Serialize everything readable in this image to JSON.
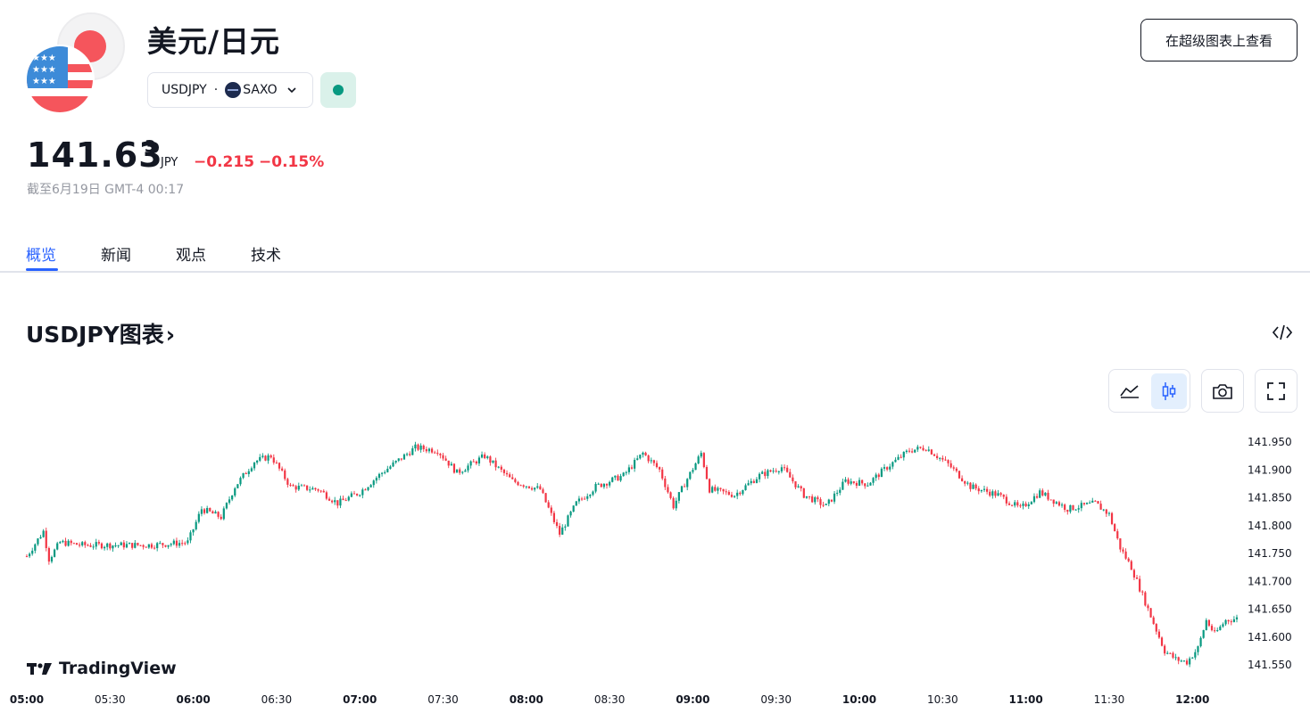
{
  "header": {
    "title": "美元/日元",
    "symbol": "USDJPY",
    "separator": "·",
    "exchange": "SAXO",
    "super_chart_label": "在超级图表上查看"
  },
  "quote": {
    "price_main": "141.63",
    "price_sup": "3",
    "currency": "JPY",
    "change": "−0.215",
    "change_pct": "−0.15%",
    "as_of": "截至6月19日 GMT-4 00:17",
    "market_status": "open",
    "colors": {
      "down": "#f23645",
      "up": "#089981",
      "accent": "#2962ff"
    }
  },
  "tabs": [
    {
      "label": "概览",
      "active": true
    },
    {
      "label": "新闻",
      "active": false
    },
    {
      "label": "观点",
      "active": false
    },
    {
      "label": "技术",
      "active": false
    }
  ],
  "chart_section": {
    "title": "USDJPY图表",
    "chevron": "›",
    "tools": [
      "area-chart-icon",
      "candles-icon",
      "camera-icon",
      "fullscreen-icon"
    ],
    "embed_icon": "code-icon",
    "brand": "TradingView"
  },
  "chart_data": {
    "type": "candlestick",
    "title": "",
    "interval": "1 minute",
    "x_ticks": [
      "05:00",
      "05:30",
      "06:00",
      "06:30",
      "07:00",
      "07:30",
      "08:00",
      "08:30",
      "09:00",
      "09:30",
      "10:00",
      "10:30",
      "11:00",
      "11:30",
      "12:00"
    ],
    "x_ticks_bold": [
      "05:00",
      "06:00",
      "07:00",
      "08:00",
      "09:00",
      "10:00",
      "11:00",
      "12:00"
    ],
    "y_ticks": [
      "141.950",
      "141.900",
      "141.850",
      "141.800",
      "141.750",
      "141.700",
      "141.650",
      "141.600",
      "141.550"
    ],
    "ylim": [
      141.51,
      141.975
    ],
    "x_range": [
      "05:00",
      "12:16"
    ],
    "close_path": [
      [
        "05:00",
        141.745
      ],
      [
        "05:06",
        141.79
      ],
      [
        "05:08",
        141.74
      ],
      [
        "05:12",
        141.77
      ],
      [
        "05:20",
        141.765
      ],
      [
        "05:45",
        141.765
      ],
      [
        "05:58",
        141.77
      ],
      [
        "06:03",
        141.83
      ],
      [
        "06:10",
        141.815
      ],
      [
        "06:15",
        141.87
      ],
      [
        "06:22",
        141.915
      ],
      [
        "06:28",
        141.925
      ],
      [
        "06:35",
        141.87
      ],
      [
        "06:45",
        141.865
      ],
      [
        "06:52",
        141.84
      ],
      [
        "07:00",
        141.86
      ],
      [
        "07:08",
        141.895
      ],
      [
        "07:20",
        141.94
      ],
      [
        "07:28",
        141.935
      ],
      [
        "07:35",
        141.895
      ],
      [
        "07:45",
        141.925
      ],
      [
        "07:55",
        141.88
      ],
      [
        "08:05",
        141.865
      ],
      [
        "08:12",
        141.785
      ],
      [
        "08:18",
        141.84
      ],
      [
        "08:25",
        141.87
      ],
      [
        "08:35",
        141.89
      ],
      [
        "08:42",
        141.93
      ],
      [
        "08:48",
        141.9
      ],
      [
        "08:53",
        141.835
      ],
      [
        "08:57",
        141.875
      ],
      [
        "09:03",
        141.93
      ],
      [
        "09:06",
        141.865
      ],
      [
        "09:15",
        141.855
      ],
      [
        "09:24",
        141.89
      ],
      [
        "09:32",
        141.905
      ],
      [
        "09:40",
        141.855
      ],
      [
        "09:48",
        141.835
      ],
      [
        "09:55",
        141.88
      ],
      [
        "10:03",
        141.875
      ],
      [
        "10:10",
        141.905
      ],
      [
        "10:18",
        141.935
      ],
      [
        "10:24",
        141.94
      ],
      [
        "10:32",
        141.91
      ],
      [
        "10:40",
        141.87
      ],
      [
        "10:50",
        141.855
      ],
      [
        "10:58",
        141.83
      ],
      [
        "11:05",
        141.86
      ],
      [
        "11:15",
        141.83
      ],
      [
        "11:25",
        141.84
      ],
      [
        "11:30",
        141.82
      ],
      [
        "11:34",
        141.76
      ],
      [
        "11:38",
        141.725
      ],
      [
        "11:42",
        141.675
      ],
      [
        "11:46",
        141.625
      ],
      [
        "11:50",
        141.575
      ],
      [
        "11:54",
        141.56
      ],
      [
        "11:58",
        141.555
      ],
      [
        "12:02",
        141.58
      ],
      [
        "12:05",
        141.63
      ],
      [
        "12:08",
        141.605
      ],
      [
        "12:12",
        141.63
      ],
      [
        "12:16",
        141.633
      ]
    ]
  }
}
